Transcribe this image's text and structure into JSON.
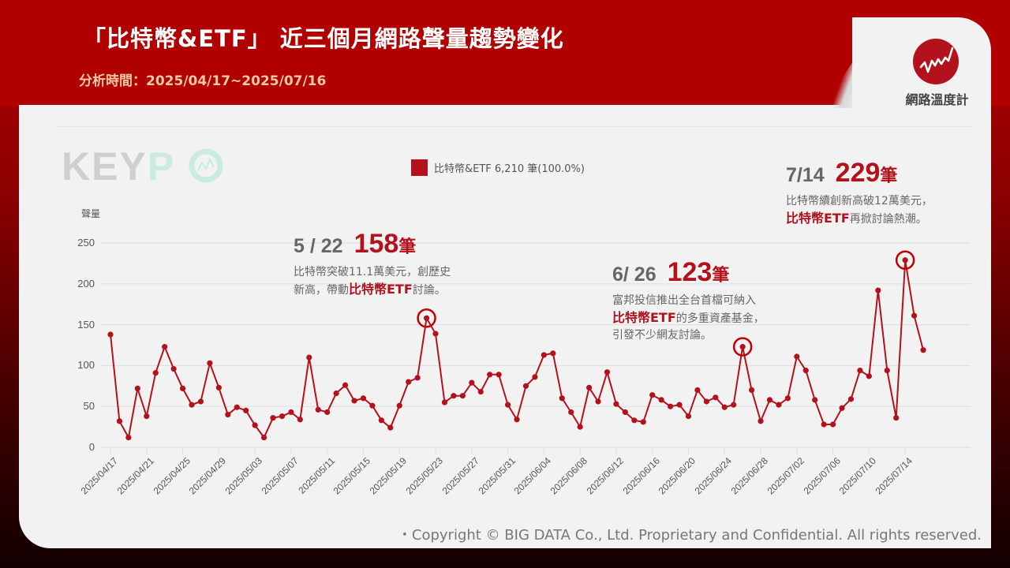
{
  "header": {
    "title": "「比特幣&ETF」 近三個月網路聲量趨勢變化",
    "analysis_period": "分析時間：2025/04/17~2025/07/16"
  },
  "brand": {
    "name": "網路溫度計",
    "logo_icon": "trend-line-icon"
  },
  "watermark": {
    "text_left": "KEY",
    "text_right": "P",
    "icon": "keypo-o-chart-icon"
  },
  "legend": {
    "label": "比特幣&ETF 6,210 筆(100.0%)",
    "color": "#b3121c"
  },
  "colors": {
    "accent": "#b3121c",
    "header_bg": "#b00000",
    "card_bg": "#f2f2f2",
    "grid": "#e0e0e0",
    "subtitle": "#f6c9a8"
  },
  "annotations": [
    {
      "date": "5 / 22",
      "count": "158",
      "unit": "筆",
      "line1": "比特幣突破11.1萬美元，創歷史",
      "line2_pre": "新高，帶動",
      "line2_hl": "比特幣ETF",
      "line2_post": "討論。",
      "line3_hl": "",
      "line3_post": "",
      "line4": ""
    },
    {
      "date": "6/ 26",
      "count": "123",
      "unit": "筆",
      "line1": "富邦投信推出全台首檔可納入",
      "line2_pre": "",
      "line2_hl": "比特幣ETF",
      "line2_post": "的多重資產基金，",
      "line3_hl": "",
      "line3_post": "",
      "line4": "引發不少網友討論。"
    },
    {
      "date": "7/14",
      "count": "229",
      "unit": "筆",
      "line1": "比特幣續創新高破12萬美元，",
      "line2_pre": "",
      "line2_hl": "比特幣ETF",
      "line2_post": "再掀討論熱潮。",
      "line3_hl": "",
      "line3_post": "",
      "line4": ""
    }
  ],
  "footer": {
    "copyright": "・Copyright © BIG DATA Co., Ltd. Proprietary and Confidential. All rights reserved."
  },
  "chart_data": {
    "type": "line",
    "title": "「比特幣&ETF」 近三個月網路聲量趨勢變化",
    "xlabel": "",
    "ylabel": "聲量",
    "ylim": [
      0,
      250
    ],
    "yticks": [
      0,
      50,
      100,
      150,
      200,
      250
    ],
    "grid": true,
    "legend_position": "top-center",
    "x_tick_labels": [
      "2025/04/17",
      "2025/04/21",
      "2025/04/25",
      "2025/04/29",
      "2025/05/03",
      "2025/05/07",
      "2025/05/11",
      "2025/05/15",
      "2025/05/19",
      "2025/05/23",
      "2025/05/27",
      "2025/05/31",
      "2025/06/04",
      "2025/06/08",
      "2025/06/12",
      "2025/06/16",
      "2025/06/20",
      "2025/06/24",
      "2025/06/28",
      "2025/07/02",
      "2025/07/06",
      "2025/07/10",
      "2025/07/14"
    ],
    "series": [
      {
        "name": "比特幣&ETF",
        "total": "6,210 筆 (100.0%)",
        "start_date": "2025/04/17",
        "end_date": "2025/07/16",
        "values": [
          138,
          32,
          12,
          72,
          38,
          91,
          123,
          96,
          72,
          52,
          56,
          103,
          73,
          40,
          49,
          45,
          27,
          12,
          36,
          38,
          43,
          34,
          110,
          46,
          43,
          66,
          76,
          57,
          60,
          51,
          33,
          24,
          51,
          80,
          85,
          158,
          139,
          55,
          63,
          63,
          79,
          68,
          89,
          89,
          52,
          34,
          75,
          86,
          113,
          115,
          60,
          43,
          25,
          73,
          56,
          92,
          53,
          43,
          33,
          31,
          64,
          58,
          50,
          52,
          38,
          70,
          56,
          61,
          49,
          52,
          123,
          70,
          32,
          58,
          52,
          60,
          111,
          94,
          58,
          28,
          28,
          48,
          59,
          94,
          87,
          192,
          94,
          36,
          229,
          161,
          119
        ]
      }
    ],
    "highlights": [
      {
        "date": "2025/05/22",
        "value": 158
      },
      {
        "date": "2025/06/26",
        "value": 123
      },
      {
        "date": "2025/07/14",
        "value": 229
      }
    ]
  }
}
